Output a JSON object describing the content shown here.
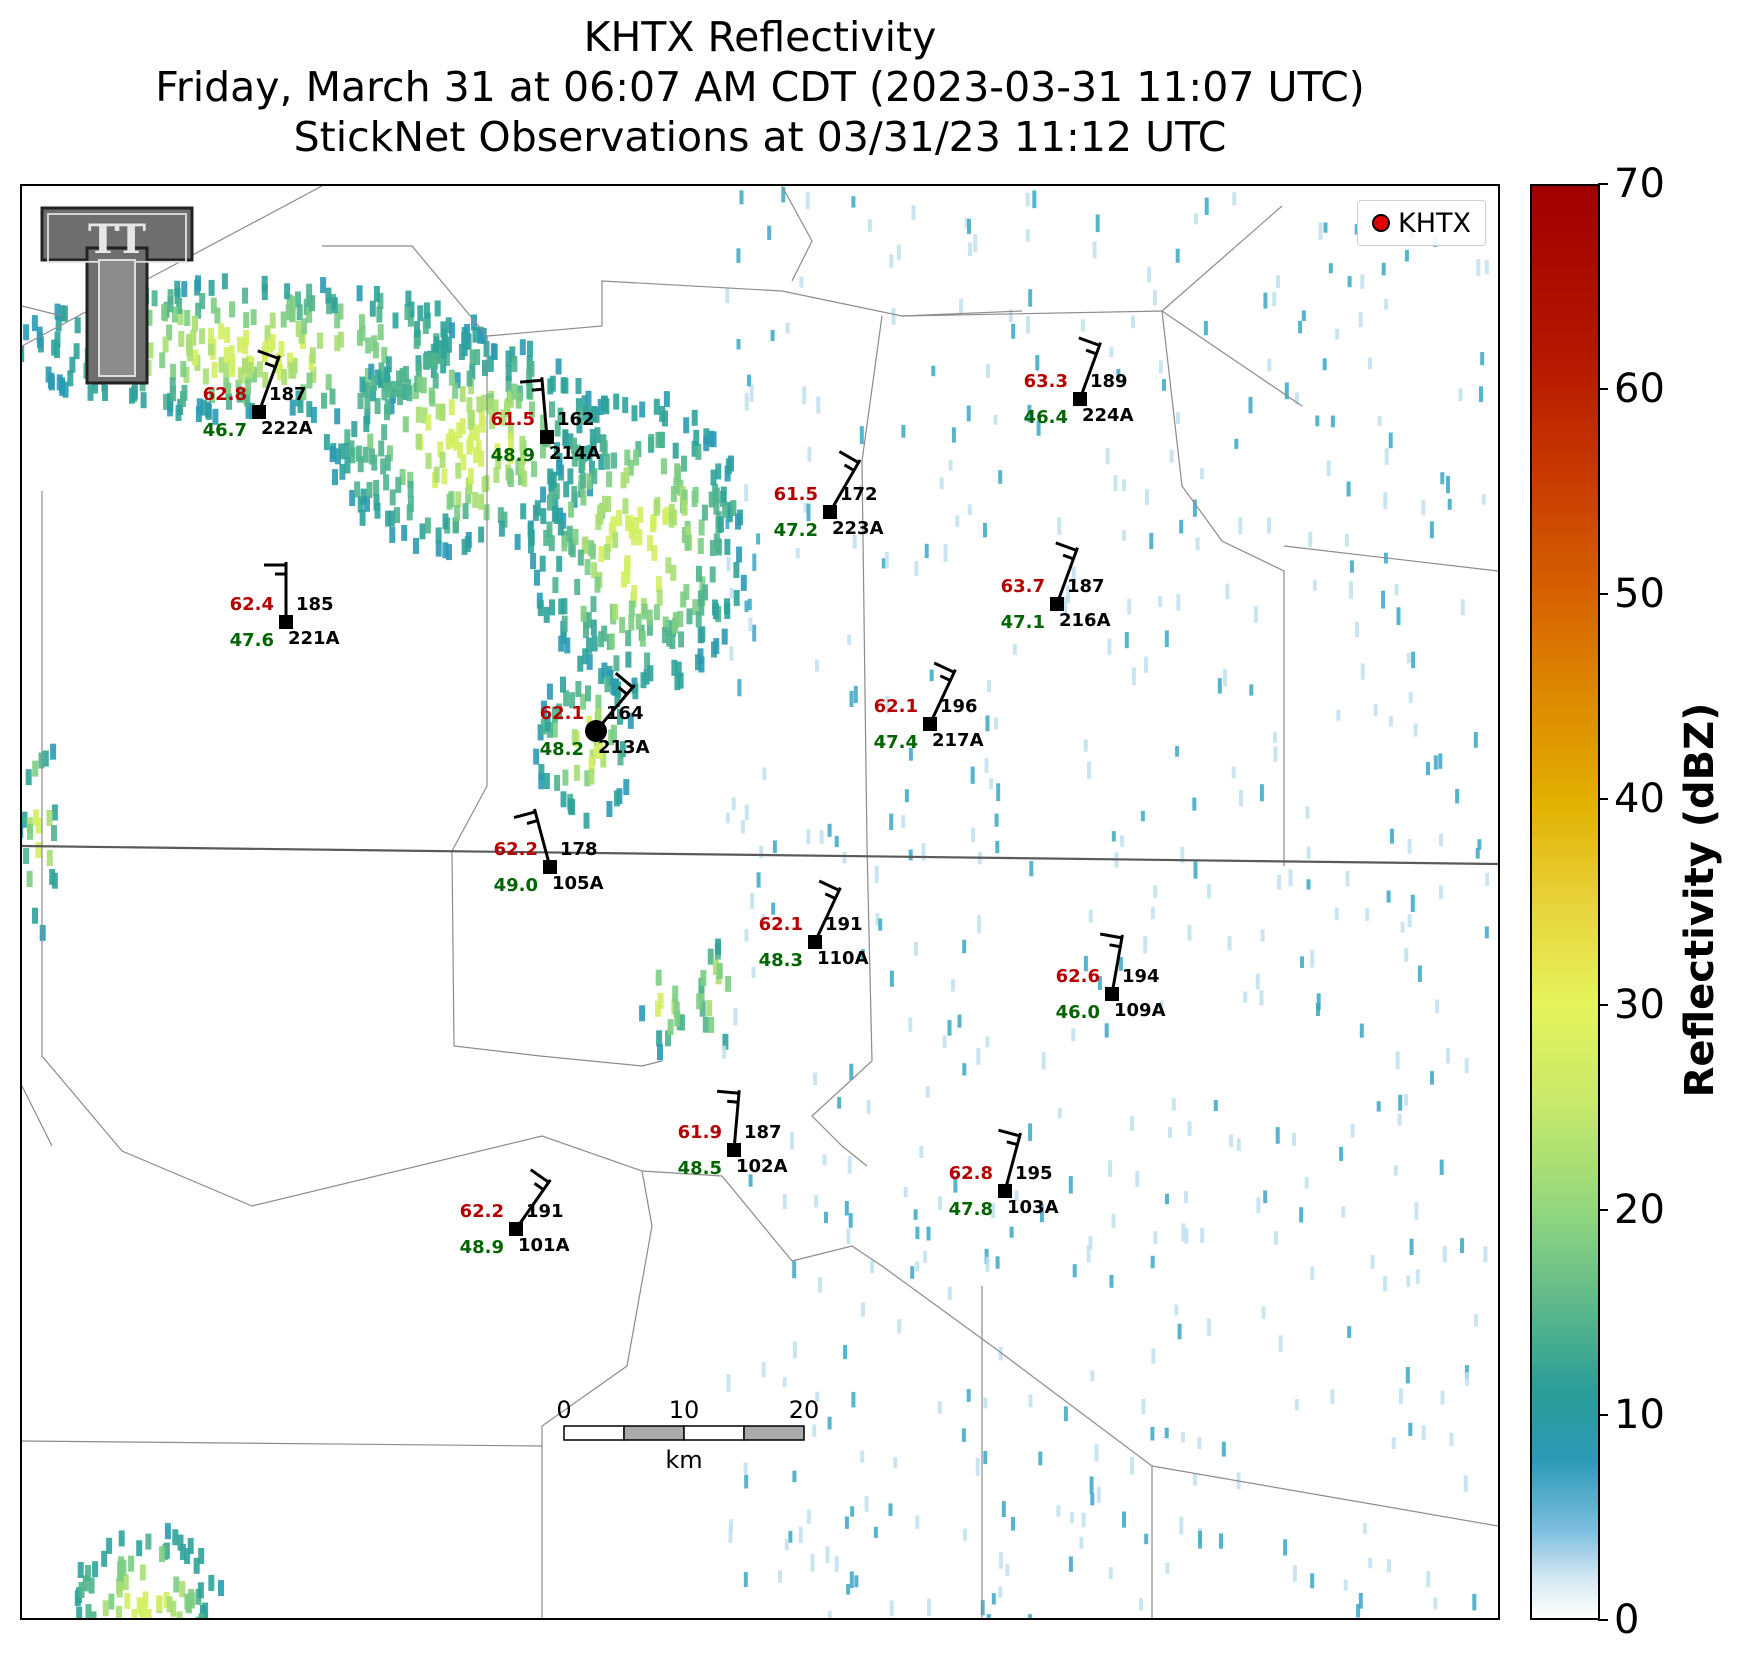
{
  "title": {
    "line1": "KHTX Reflectivity",
    "line2": "Friday, March 31 at 06:07 AM CDT (2023-03-31 11:07 UTC)",
    "line3": "StickNet Observations at 03/31/23 11:12 UTC"
  },
  "legend": {
    "label": "KHTX",
    "marker_color": "#e00000"
  },
  "logo": {
    "text": "TT"
  },
  "colorbar": {
    "label": "Reflectivity (dBZ)",
    "ticks": [
      "0",
      "10",
      "20",
      "30",
      "40",
      "50",
      "60",
      "70"
    ],
    "range": [
      0,
      70
    ]
  },
  "scalebar": {
    "labels": [
      "0",
      "10",
      "20"
    ],
    "unit": "km"
  },
  "colors": {
    "temp": "#b40000",
    "dew": "#006400",
    "station": "#000000",
    "border": "#888888"
  },
  "stations": [
    {
      "id": "222A",
      "temp": "62.8",
      "dew": "46.7",
      "val": "187"
    },
    {
      "id": "214A",
      "temp": "61.5",
      "dew": "48.9",
      "val": "162"
    },
    {
      "id": "224A",
      "temp": "63.3",
      "dew": "46.4",
      "val": "189"
    },
    {
      "id": "223A",
      "temp": "61.5",
      "dew": "47.2",
      "val": "172"
    },
    {
      "id": "221A",
      "temp": "62.4",
      "dew": "47.6",
      "val": "185"
    },
    {
      "id": "216A",
      "temp": "63.7",
      "dew": "47.1",
      "val": "187"
    },
    {
      "id": "213A",
      "temp": "62.1",
      "dew": "48.2",
      "val": "164"
    },
    {
      "id": "217A",
      "temp": "62.1",
      "dew": "47.4",
      "val": "196"
    },
    {
      "id": "105A",
      "temp": "62.2",
      "dew": "49.0",
      "val": "178"
    },
    {
      "id": "110A",
      "temp": "62.1",
      "dew": "48.3",
      "val": "191"
    },
    {
      "id": "109A",
      "temp": "62.6",
      "dew": "46.0",
      "val": "194"
    },
    {
      "id": "102A",
      "temp": "61.9",
      "dew": "48.5",
      "val": "187"
    },
    {
      "id": "103A",
      "temp": "62.8",
      "dew": "47.8",
      "val": "195"
    },
    {
      "id": "101A",
      "temp": "62.2",
      "dew": "48.9",
      "val": "191"
    }
  ]
}
